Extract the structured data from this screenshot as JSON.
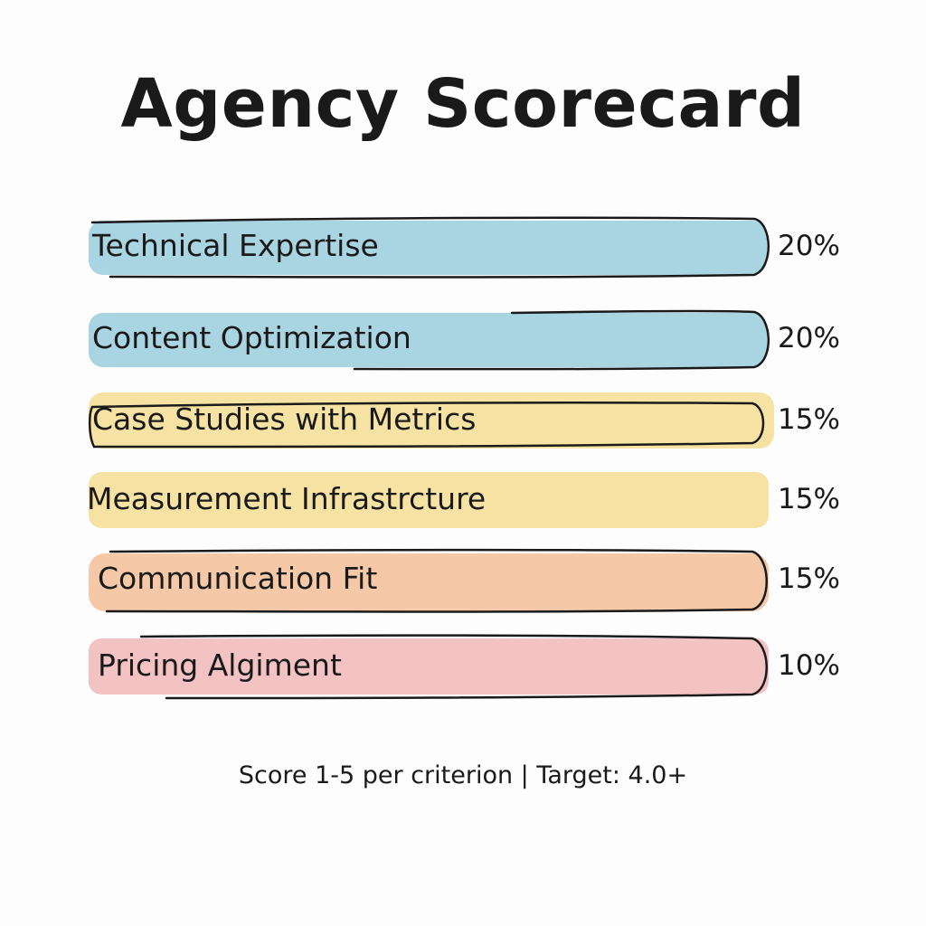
{
  "title": "Agency Scorecard",
  "criteria": [
    {
      "label": "Technical Expertise",
      "weight": "20%",
      "color": "#a9d4e1"
    },
    {
      "label": "Content Optimization",
      "weight": "20%",
      "color": "#a9d4e1"
    },
    {
      "label": "Case Studies with Metrics",
      "weight": "15%",
      "color": "#f6e3a3"
    },
    {
      "label": "Measurement Infrastrcture",
      "weight": "15%",
      "color": "#f6e3a3"
    },
    {
      "label": "Communication Fit",
      "weight": "15%",
      "color": "#f5c9a8"
    },
    {
      "label": "Pricing Algiment",
      "weight": "10%",
      "color": "#f3c2c2"
    }
  ],
  "footer": "Score 1-5 per criterion | Target: 4.0+"
}
